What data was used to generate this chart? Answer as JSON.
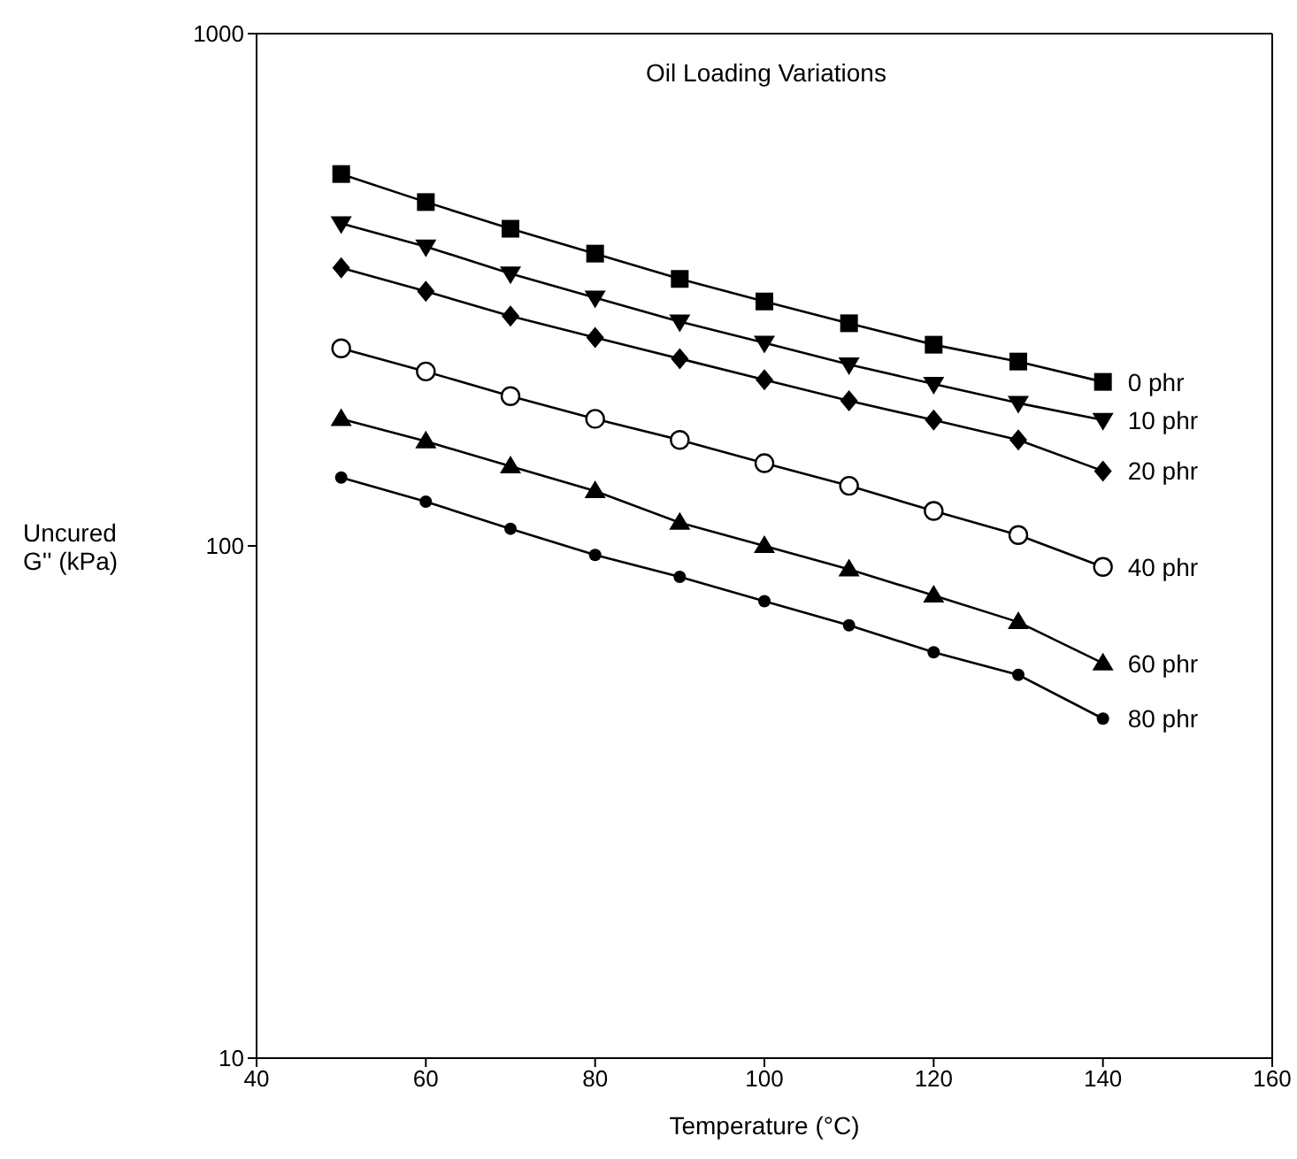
{
  "chart_data": {
    "type": "line",
    "title": "Oil Loading Variations",
    "xlabel": "Temperature (°C)",
    "ylabel": "Uncured G'' (kPa)",
    "x": [
      50,
      60,
      70,
      80,
      90,
      100,
      110,
      120,
      130,
      140
    ],
    "series": [
      {
        "name": "0 phr",
        "color": "#000000",
        "marker": "square",
        "values": [
          532,
          469,
          416,
          372,
          332,
          300,
          272,
          247,
          229,
          209
        ]
      },
      {
        "name": "10 phr",
        "color": "#000000",
        "marker": "triangle-down",
        "values": [
          426,
          384,
          340,
          305,
          274,
          249,
          226,
          207,
          190,
          176
        ]
      },
      {
        "name": "20 phr",
        "color": "#000000",
        "marker": "diamond",
        "values": [
          349,
          314,
          281,
          255,
          232,
          211,
          192,
          176,
          161,
          140
        ]
      },
      {
        "name": "40 phr",
        "color": "#000000",
        "marker": "circle-open",
        "values": [
          243,
          219,
          196,
          177,
          161,
          145,
          131,
          117,
          105,
          91
        ]
      },
      {
        "name": "60 phr",
        "color": "#000000",
        "marker": "triangle",
        "values": [
          177,
          160,
          143,
          128,
          111,
          100,
          90,
          80,
          71,
          59
        ]
      },
      {
        "name": "80 phr",
        "color": "#000000",
        "marker": "circle",
        "values": [
          136,
          122,
          108,
          96,
          87,
          78,
          70,
          62,
          56,
          46
        ]
      }
    ],
    "xlim": [
      40,
      160
    ],
    "xticks": [
      40,
      60,
      80,
      100,
      120,
      140,
      160
    ],
    "ylim": [
      10,
      1000
    ],
    "yticks": [
      10,
      100,
      1000
    ],
    "log": true,
    "grid": false,
    "line_style": "solid"
  }
}
